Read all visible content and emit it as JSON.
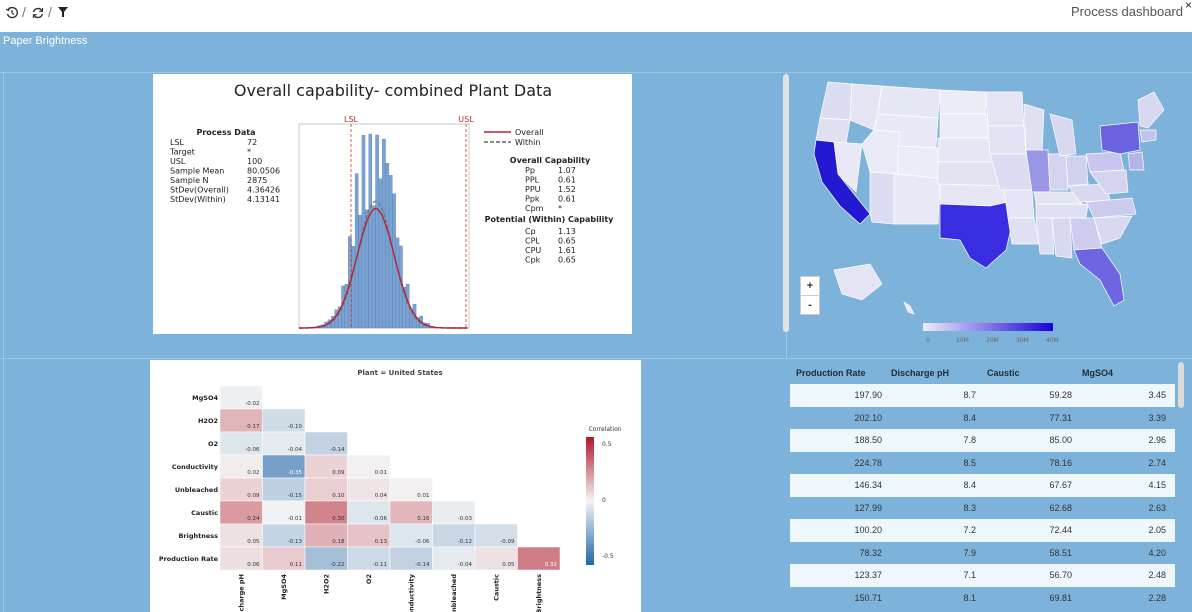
{
  "toolbar": {
    "history_icon": "history-icon",
    "refresh_icon": "refresh-icon",
    "filter_icon": "filter-icon",
    "sep": "/",
    "dashboard_label": "Process dashboard",
    "close_label": "×"
  },
  "section": {
    "title": "Paper Brightness"
  },
  "capability": {
    "title": "Overall capability- combined Plant Data",
    "process_data_title": "Process Data",
    "process_data": [
      [
        "LSL",
        "72"
      ],
      [
        "Target",
        "*"
      ],
      [
        "USL",
        "100"
      ],
      [
        "Sample Mean",
        "80.0506"
      ],
      [
        "Sample N",
        "2875"
      ],
      [
        "StDev(Overall)",
        "4.36426"
      ],
      [
        "StDev(Within)",
        "4.13141"
      ]
    ],
    "lsl_label": "LSL",
    "usl_label": "USL",
    "legend_overall": "Overall",
    "legend_within": "Within",
    "overall_title": "Overall Capability",
    "overall": [
      [
        "Pp",
        "1.07"
      ],
      [
        "PPL",
        "0.61"
      ],
      [
        "PPU",
        "1.52"
      ],
      [
        "Ppk",
        "0.61"
      ],
      [
        "Cpm",
        "*"
      ]
    ],
    "potential_title": "Potential (Within) Capability",
    "potential": [
      [
        "Cp",
        "1.13"
      ],
      [
        "CPL",
        "0.65"
      ],
      [
        "CPU",
        "1.61"
      ],
      [
        "Cpk",
        "0.65"
      ]
    ],
    "colors": {
      "bars": "#7aa3d4",
      "curve": "#b3243a",
      "limits": "#c0392b"
    }
  },
  "map": {
    "zoom_in": "+",
    "zoom_out": "-",
    "legend_ticks": [
      "0",
      "10M",
      "20M",
      "30M",
      "40M"
    ],
    "colors": {
      "low": "#eeeef8",
      "high": "#1a00d8"
    }
  },
  "correlation": {
    "title": "Plant = United States",
    "legend_title": "Correlation",
    "legend_ticks": [
      "0.5",
      "0",
      "-0.5"
    ],
    "row_labels": [
      "MgSO4",
      "H2O2",
      "O2",
      "Conductivity",
      "Unbleached",
      "Caustic",
      "Brightness",
      "Production Rate"
    ],
    "col_labels": [
      "Discharge pH",
      "MgSO4",
      "H2O2",
      "O2",
      "Conductivity",
      "Unbleached",
      "Caustic",
      "Brightness"
    ],
    "values": [
      [
        "-0.02"
      ],
      [
        "0.17",
        "-0.10"
      ],
      [
        "-0.06",
        "-0.04",
        "-0.14"
      ],
      [
        "0.02",
        "-0.35",
        "0.09",
        "0.01"
      ],
      [
        "0.09",
        "-0.15",
        "0.10",
        "0.04",
        "0.01"
      ],
      [
        "0.24",
        "-0.01",
        "0.30",
        "-0.06",
        "0.16",
        "-0.03"
      ],
      [
        "0.05",
        "-0.13",
        "0.18",
        "0.13",
        "-0.06",
        "-0.12",
        "-0.09"
      ],
      [
        "0.06",
        "0.11",
        "-0.22",
        "-0.11",
        "-0.14",
        "-0.04",
        "0.05",
        "0.32"
      ]
    ]
  },
  "table": {
    "headers": [
      "Production Rate",
      "Discharge pH",
      "Caustic",
      "MgSO4"
    ],
    "rows": [
      [
        "197.90",
        "8.7",
        "59.28",
        "3.45"
      ],
      [
        "202.10",
        "8.4",
        "77.31",
        "3.39"
      ],
      [
        "188.50",
        "7.8",
        "85.00",
        "2.96"
      ],
      [
        "224.78",
        "8.5",
        "78.16",
        "2.74"
      ],
      [
        "146.34",
        "8.4",
        "67.67",
        "4.15"
      ],
      [
        "127.99",
        "8.3",
        "62.68",
        "2.63"
      ],
      [
        "100.20",
        "7.2",
        "72.44",
        "2.05"
      ],
      [
        "78.32",
        "7.9",
        "58.51",
        "4.20"
      ],
      [
        "123.37",
        "7.1",
        "56.70",
        "2.48"
      ],
      [
        "150.71",
        "8.1",
        "69.81",
        "2.28"
      ]
    ]
  }
}
